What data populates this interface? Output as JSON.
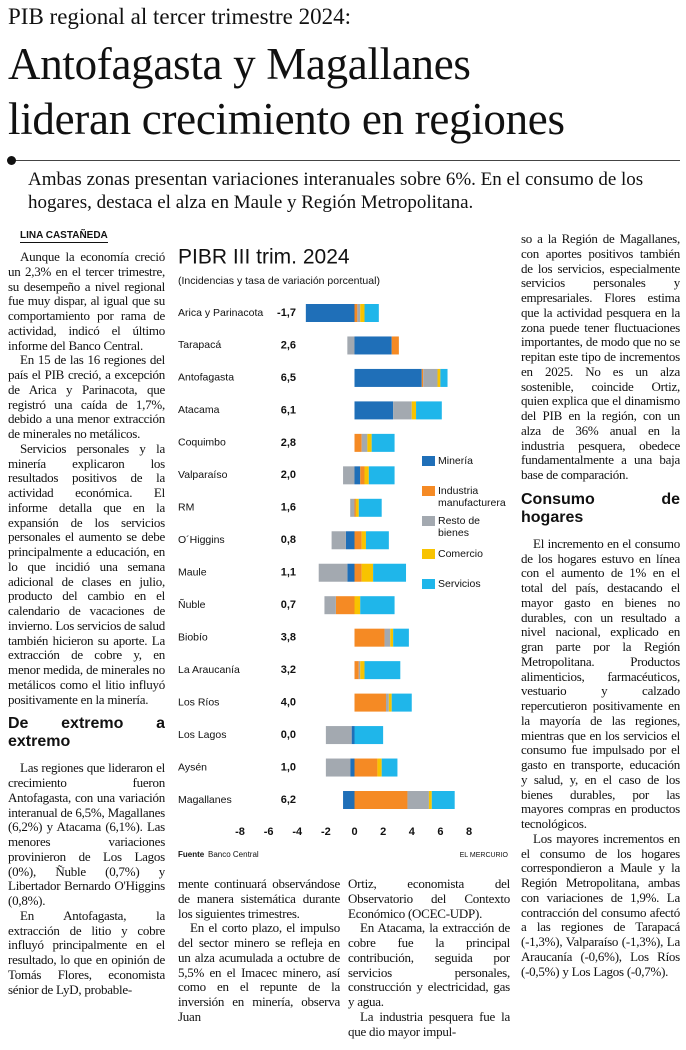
{
  "header": {
    "kicker": "PIB regional al tercer trimestre 2024:",
    "headline": [
      "Antofagasta y Magallanes",
      "lideran crecimiento en regiones"
    ],
    "deck": "Ambas zonas presentan variaciones interanuales sobre 6%. En el consumo de los hogares, destaca el alza en Maule y Región Metropolitana.",
    "byline": "LINA CASTAÑEDA"
  },
  "columns": [
    [
      {
        "text": "Aunque la economía creció un 2,3% en el tercer trimestre, su desempeño a nivel regional fue muy dispar, al igual que su comportamiento por rama de actividad, indicó el último informe del Banco Central."
      },
      {
        "text": "En 15 de las 16 regiones del país el PIB creció, a excepción de Arica y Parinacota, que registró una caída de 1,7%, debido a una menor extracción de minerales no metálicos."
      },
      {
        "text": "Servicios personales y la minería explicaron los resultados positivos de la actividad económica. El informe detalla que en la expansión de los servicios personales el aumento se debe principalmente a educación, en lo que incidió una semana adicional de clases en julio, producto del cambio en el calendario de vacaciones de invierno. Los servicios de salud también hicieron su aporte. La extracción de cobre y, en menor medida, de minerales no metálicos como el litio influyó positivamente en la minería."
      },
      {
        "heading": "De extremo a extremo"
      },
      {
        "text": "Las regiones que lideraron el crecimiento fueron Antofagasta, con una variación interanual de 6,5%, Magallanes (6,2%) y Atacama (6,1%). Las menores variaciones provinieron de Los Lagos (0%), Ñuble (0,7%) y Libertador Bernardo O'Higgins (0,8%)."
      },
      {
        "text": "En Antofagasta, la extracción de litio y cobre influyó principalmente en el resultado, lo que en opinión de Tomás Flores, economista sénior de LyD, probable-"
      }
    ],
    [
      {
        "text": "mente continuará observándose de manera sistemática durante los siguientes trimestres."
      },
      {
        "text": "En el corto plazo, el impulso del sector minero se refleja en un alza acumulada a octubre de 5,5% en el Imacec minero, así como en el repunte de la inversión en minería, observa Juan"
      }
    ],
    [
      {
        "text": "Ortiz, economista del Observatorio del Contexto Económico (OCEC-UDP)."
      },
      {
        "text": "En Atacama, la extracción de cobre fue la principal contribución, seguida por servicios personales, construcción y electricidad, gas y agua."
      },
      {
        "text": "La industria pesquera fue la que dio mayor impul-"
      }
    ],
    [
      {
        "text": "so a la Región de Magallanes, con aportes positivos también de los servicios, especialmente servicios personales y empresariales. Flores estima que la actividad pesquera en la zona puede tener fluctuaciones importantes, de modo que no se repitan este tipo de incrementos en 2025. No es un alza sostenible, coincide Ortiz, quien explica que el dinamismo del PIB en la región, con un alza de 36% anual en la industria pesquera, obedece fundamentalmente a una baja base de comparación."
      },
      {
        "heading": "Consumo de hogares"
      },
      {
        "text": "El incremento en el consumo de los hogares estuvo en línea con el aumento de 1% en el total del país, destacando el mayor gasto en bienes no durables, con un resultado a nivel nacional, explicado en gran parte por la Región Metropolitana. Productos alimenticios, farmacéuticos, vestuario y calzado repercutieron positivamente en la mayoría de las regiones, mientras que en los servicios el consumo fue impulsado por el gasto en transporte, educación y salud, y, en el caso de los bienes durables, por las mayores compras en productos tecnológicos."
      },
      {
        "text": "Los mayores incrementos en el consumo de los hogares correspondieron a Maule y la Región Metropolitana, ambas con variaciones de 1,9%. La contracción del consumo afectó a las regiones de Tarapacá (-1,3%), Valparaíso (-1,3%), La Araucanía (-0,6%), Los Ríos (-0,5%) y Los Lagos (-0,7%)."
      }
    ]
  ],
  "chart_data": {
    "type": "bar",
    "orientation": "horizontal",
    "stacked": true,
    "title": "PIBR III trim. 2024",
    "subtitle": "(Incidencias y tasa de variación porcentual)",
    "categories": [
      "Arica y Parinacota",
      "Tarapacá",
      "Antofagasta",
      "Atacama",
      "Coquimbo",
      "Valparaíso",
      "RM",
      "O´Higgins",
      "Maule",
      "Ñuble",
      "Biobío",
      "La Araucanía",
      "Los Ríos",
      "Los Lagos",
      "Aysén",
      "Magallanes"
    ],
    "totals": [
      -1.7,
      2.6,
      6.5,
      6.1,
      2.8,
      2.0,
      1.6,
      0.8,
      1.1,
      0.7,
      3.8,
      3.2,
      4.0,
      0.0,
      1.0,
      6.2
    ],
    "value_labels": [
      "-1,7",
      "2,6",
      "6,5",
      "6,1",
      "2,8",
      "2,0",
      "1,6",
      "0,8",
      "1,1",
      "0,7",
      "3,8",
      "3,2",
      "4,0",
      "0,0",
      "1,0",
      "6,2"
    ],
    "series": [
      {
        "name": "Minería",
        "color": "#1f6fb8",
        "values": [
          -3.4,
          2.6,
          4.7,
          2.7,
          0,
          0.4,
          0,
          -0.6,
          -0.5,
          0,
          0,
          0,
          0,
          -0.2,
          -0.3,
          -0.8
        ]
      },
      {
        "name": "Industria manufacturera",
        "color": "#f58a24",
        "values": [
          0.2,
          0.5,
          0.1,
          0,
          0.5,
          0.3,
          0.1,
          0.5,
          0.5,
          -1.3,
          2.1,
          0.3,
          2.2,
          0,
          1.6,
          3.7
        ]
      },
      {
        "name": "Resto de bienes",
        "color": "#a3a9b0",
        "values": [
          0.2,
          -0.5,
          1.0,
          1.3,
          0.4,
          -0.8,
          -0.3,
          -1.0,
          -2.0,
          -0.8,
          0.4,
          0.1,
          0.2,
          -1.8,
          -1.7,
          1.5
        ]
      },
      {
        "name": "Comercio",
        "color": "#f8c300",
        "values": [
          0.3,
          0,
          0.2,
          0.3,
          0.3,
          0.3,
          0.2,
          0.3,
          0.8,
          0.4,
          0.2,
          0.3,
          0.2,
          0,
          0.3,
          0.2
        ]
      },
      {
        "name": "Servicios",
        "color": "#1fb6ea",
        "values": [
          1.0,
          0,
          0.5,
          1.8,
          1.6,
          1.8,
          1.6,
          1.6,
          2.3,
          2.4,
          1.1,
          2.5,
          1.4,
          2.0,
          1.1,
          1.6
        ]
      }
    ],
    "xlim": [
      -8,
      8
    ],
    "xticks": [
      -8,
      -6,
      -4,
      -2,
      0,
      2,
      4,
      6,
      8
    ],
    "source_label": "Fuente",
    "source": "Banco Central",
    "credit": "EL MERCURIO"
  }
}
